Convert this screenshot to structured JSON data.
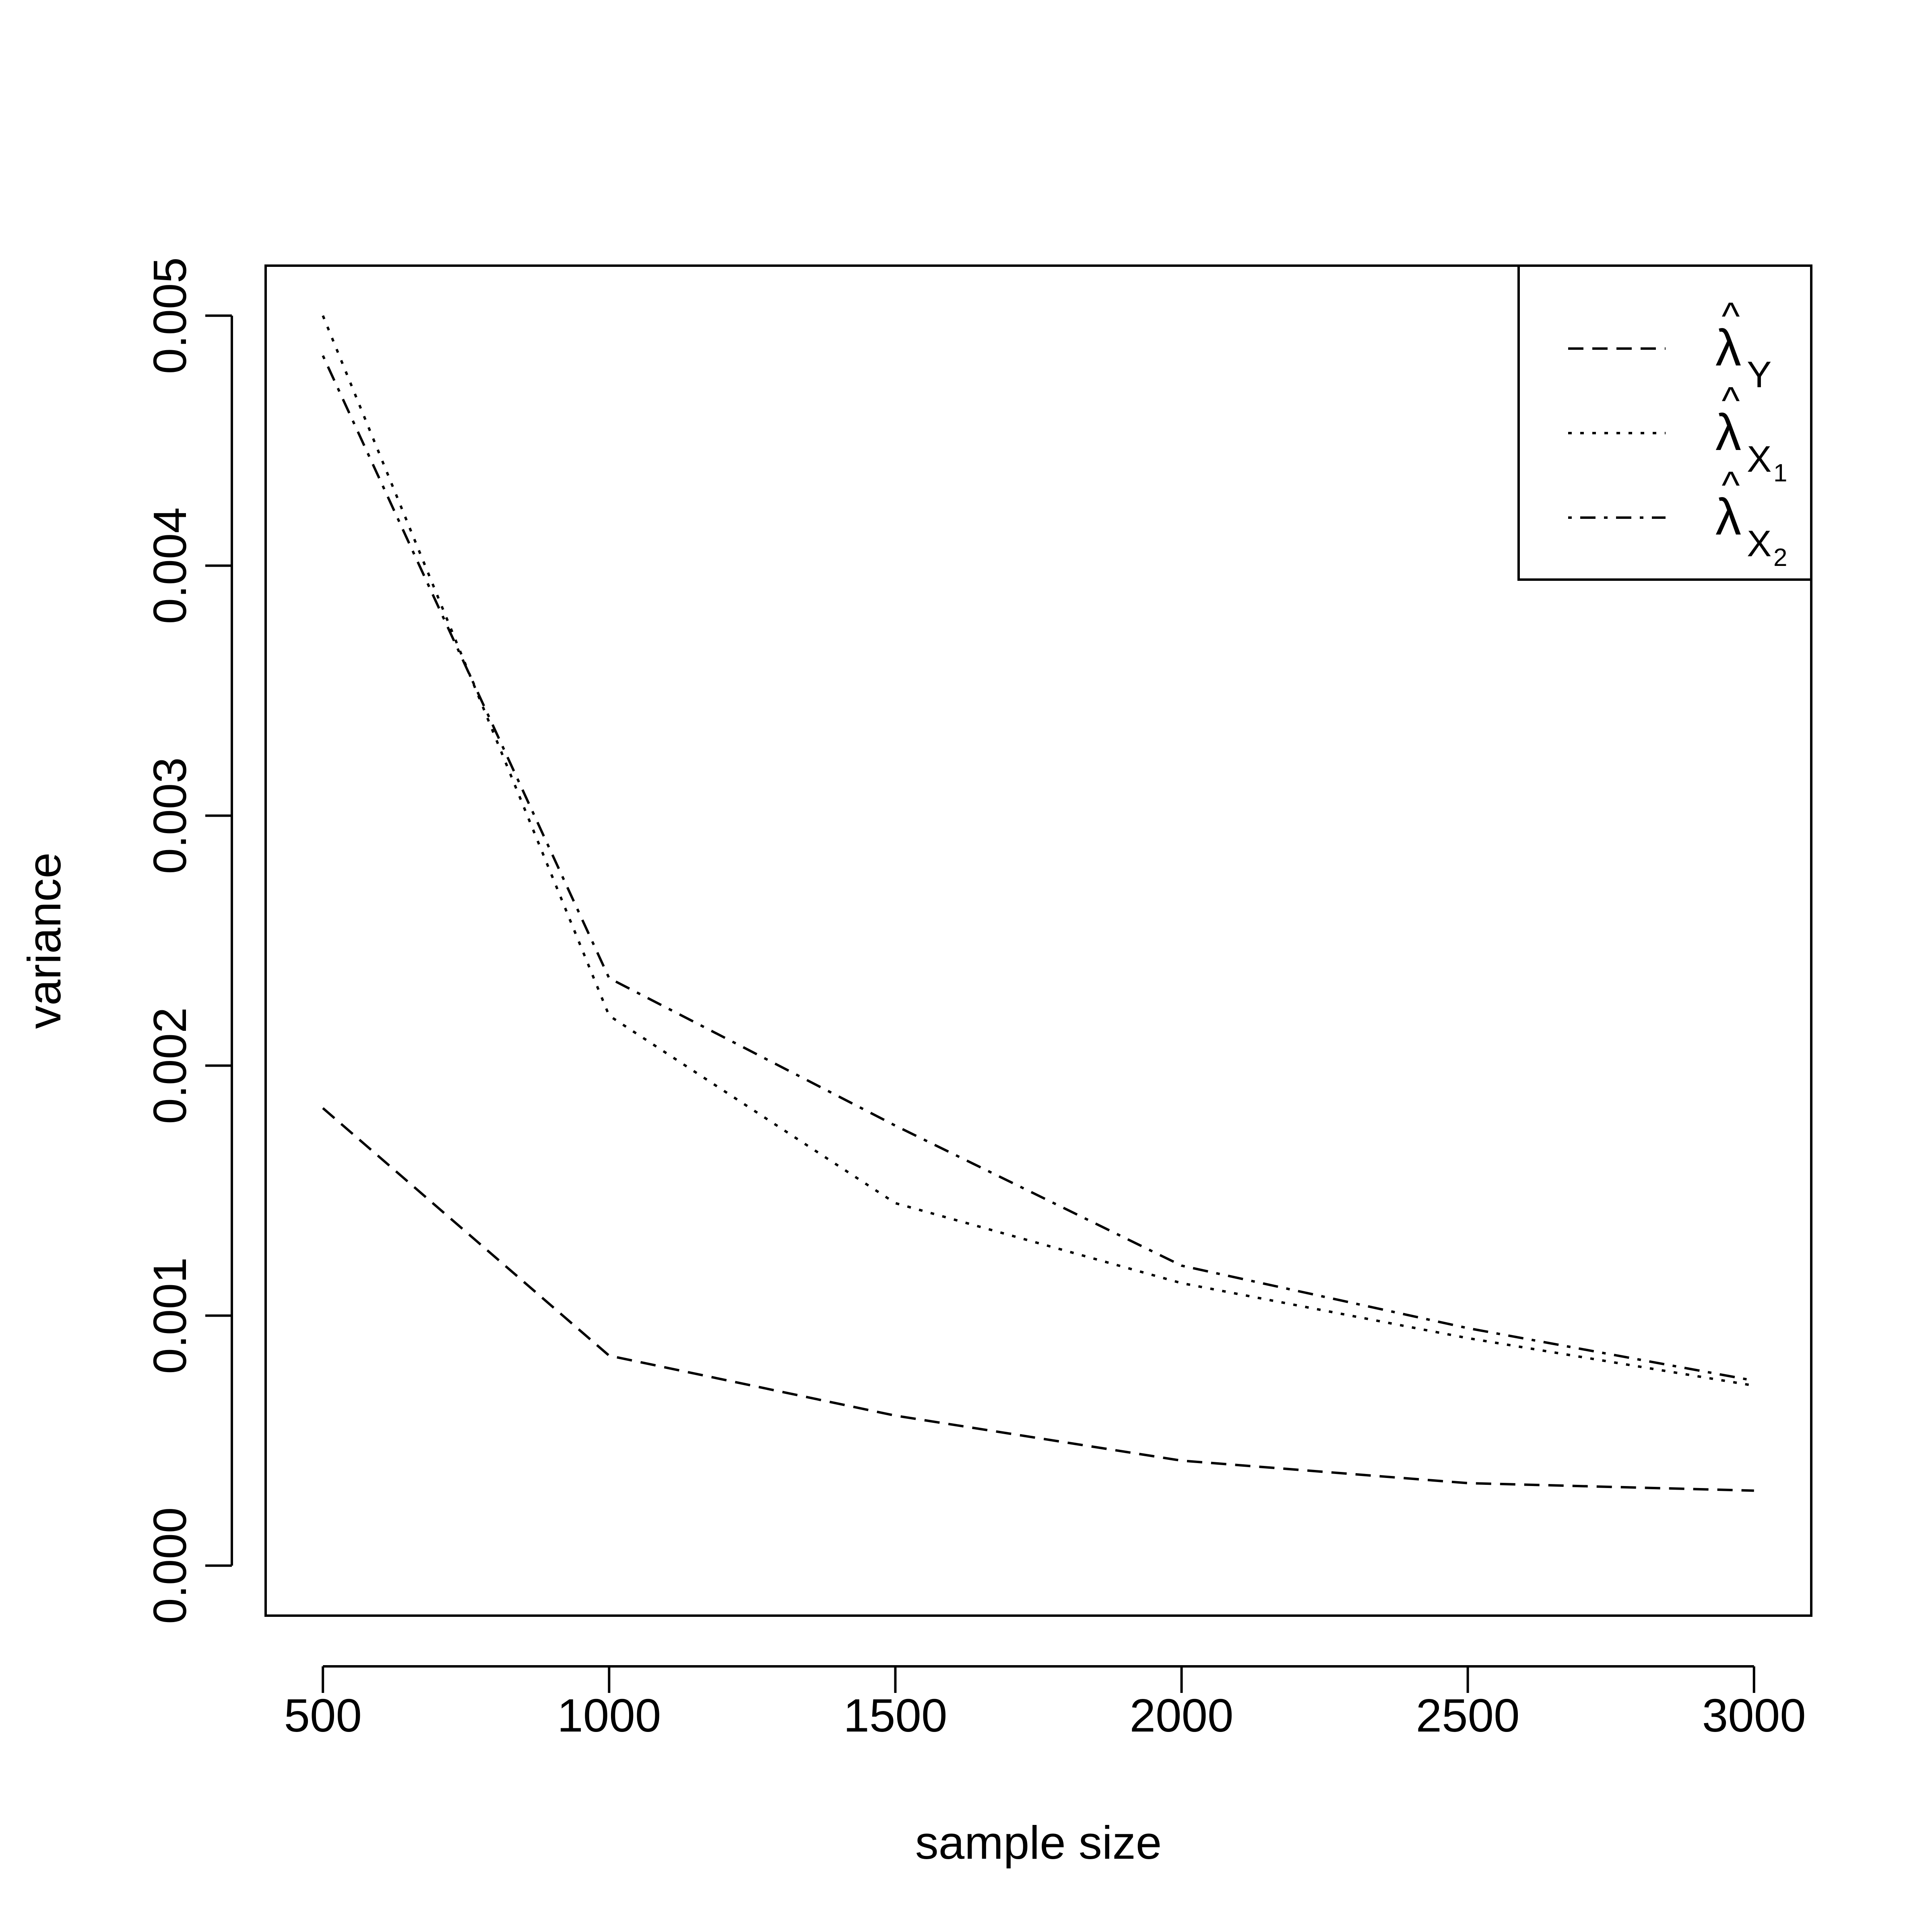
{
  "chart_data": {
    "type": "line",
    "title": "",
    "xlabel": "sample size",
    "ylabel": "variance",
    "x": [
      500,
      1000,
      1500,
      2000,
      2500,
      3000
    ],
    "xlim": [
      400,
      3100
    ],
    "ylim": [
      -0.0002,
      0.0052
    ],
    "x_ticks": [
      "500",
      "1000",
      "1500",
      "2000",
      "2500",
      "3000"
    ],
    "y_ticks": [
      "0.000",
      "0.001",
      "0.002",
      "0.003",
      "0.004",
      "0.005"
    ],
    "grid": false,
    "legend_position": "top-right",
    "series": [
      {
        "name": "λ̂_Y",
        "base": "λ",
        "hat": "^",
        "sub": "Y",
        "subsub": "",
        "linestyle": "dashed",
        "color": "#000000",
        "values": [
          0.00183,
          0.00084,
          0.0006,
          0.00042,
          0.00033,
          0.0003
        ]
      },
      {
        "name": "λ̂_X1",
        "base": "λ",
        "hat": "^",
        "sub": "X",
        "subsub": "1",
        "linestyle": "dotted",
        "color": "#000000",
        "values": [
          0.005,
          0.0022,
          0.00145,
          0.00113,
          0.00091,
          0.00072
        ]
      },
      {
        "name": "λ̂_X2",
        "base": "λ",
        "hat": "^",
        "sub": "X",
        "subsub": "2",
        "linestyle": "dotdash",
        "color": "#000000",
        "values": [
          0.00484,
          0.00235,
          0.00176,
          0.0012,
          0.00095,
          0.00074
        ]
      }
    ]
  }
}
